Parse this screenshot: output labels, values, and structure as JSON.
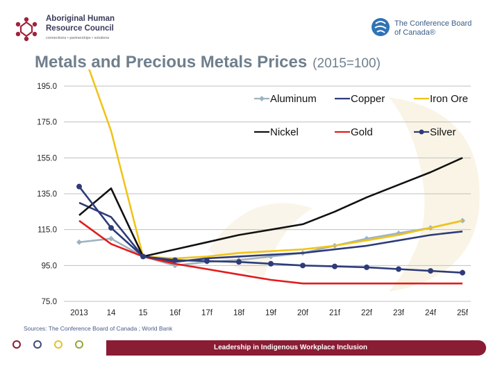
{
  "header": {
    "left_logo_name_line1": "Aboriginal Human",
    "left_logo_name_line2": "Resource Council",
    "left_logo_tagline": "connections • partnerships • solutions",
    "right_logo_name_line1": "The Conference Board",
    "right_logo_name_line2": "of Canada®"
  },
  "title": "Metals and Precious Metals Prices",
  "title_suffix": "(2015=100)",
  "source": "Sources: The Conference Board of Canada ; World Bank",
  "footer": {
    "text": "Leadership in Indigenous Workplace Inclusion",
    "circle_colors": [
      "#8a1c34",
      "#3e4a78",
      "#e3c22a",
      "#9aa33a"
    ],
    "bar_color": "#8a1c34"
  },
  "chart_data": {
    "type": "line",
    "categories": [
      "2013",
      "14",
      "15",
      "16f",
      "17f",
      "18f",
      "19f",
      "20f",
      "21f",
      "22f",
      "23f",
      "24f",
      "25f"
    ],
    "ylim": [
      75,
      195
    ],
    "yticks": [
      "75.0",
      "95.0",
      "115.0",
      "135.0",
      "155.0",
      "175.0",
      "195.0"
    ],
    "grid": true,
    "legend_position": "top-right",
    "series": [
      {
        "name": "Aluminum",
        "color": "#9fb3c0",
        "marker": "diamond",
        "values": [
          108,
          110,
          100,
          95,
          97,
          98,
          100,
          102,
          106,
          110,
          113,
          116,
          120
        ]
      },
      {
        "name": "Copper",
        "color": "#2e3b7a",
        "marker": "none",
        "values": [
          130,
          122,
          100,
          97,
          99,
          100,
          101,
          102,
          104,
          106,
          109,
          112,
          114
        ]
      },
      {
        "name": "Iron Ore",
        "color": "#f0c419",
        "marker": "none",
        "values": [
          220,
          170,
          100,
          99,
          100,
          102,
          103,
          104,
          106,
          109,
          112,
          116,
          120
        ]
      },
      {
        "name": "Nickel",
        "color": "#111111",
        "marker": "none",
        "values": [
          123,
          138,
          100,
          104,
          108,
          112,
          115,
          118,
          125,
          133,
          140,
          147,
          155
        ]
      },
      {
        "name": "Gold",
        "color": "#e21b1b",
        "marker": "none",
        "values": [
          120,
          107,
          100,
          96,
          93,
          90,
          87,
          85,
          85,
          85,
          85,
          85,
          85
        ]
      },
      {
        "name": "Silver",
        "color": "#2e3b7a",
        "marker": "circle",
        "values": [
          139,
          116,
          100,
          98,
          97.5,
          97,
          96,
          95,
          94.5,
          94,
          93,
          92,
          91
        ]
      }
    ]
  }
}
